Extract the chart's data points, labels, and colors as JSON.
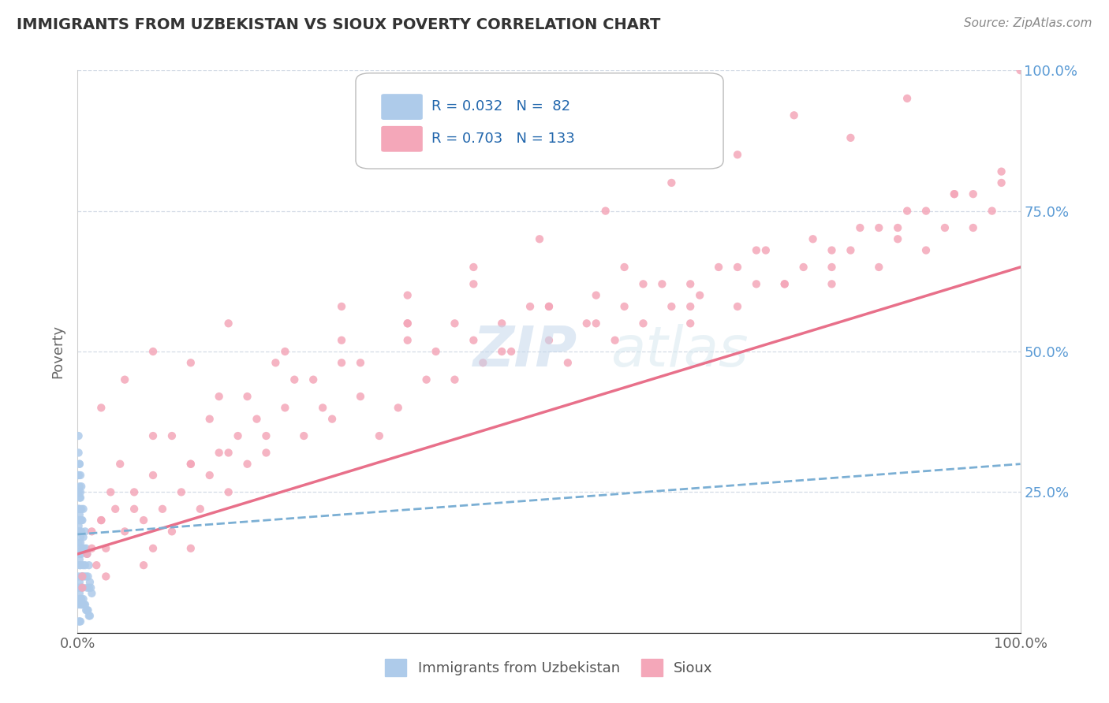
{
  "title": "IMMIGRANTS FROM UZBEKISTAN VS SIOUX POVERTY CORRELATION CHART",
  "source": "Source: ZipAtlas.com",
  "ylabel": "Poverty",
  "xlim": [
    0.0,
    1.0
  ],
  "ylim": [
    0.0,
    1.0
  ],
  "legend_entries": [
    {
      "label": "Immigrants from Uzbekistan",
      "color": "#aecbea",
      "R": 0.032,
      "N": 82
    },
    {
      "label": "Sioux",
      "color": "#f4a7b9",
      "R": 0.703,
      "N": 133
    }
  ],
  "uzbekistan_color": "#aecbea",
  "sioux_color": "#f4a7b9",
  "uzbekistan_line_color": "#7bafd4",
  "sioux_line_color": "#e8708a",
  "background_color": "#ffffff",
  "grid_color": "#d0d8e4",
  "watermark_color": "#dce8f0",
  "uzbekistan_scatter": {
    "x": [
      0.001,
      0.001,
      0.001,
      0.001,
      0.002,
      0.002,
      0.002,
      0.002,
      0.002,
      0.002,
      0.002,
      0.003,
      0.003,
      0.003,
      0.003,
      0.003,
      0.004,
      0.004,
      0.004,
      0.004,
      0.005,
      0.005,
      0.005,
      0.006,
      0.006,
      0.006,
      0.007,
      0.007,
      0.008,
      0.008,
      0.009,
      0.009,
      0.01,
      0.01,
      0.011,
      0.012,
      0.012,
      0.013,
      0.014,
      0.015,
      0.001,
      0.001,
      0.001,
      0.002,
      0.002,
      0.002,
      0.003,
      0.003,
      0.004,
      0.004,
      0.005,
      0.005,
      0.006,
      0.007,
      0.008,
      0.009,
      0.01,
      0.011,
      0.012,
      0.013,
      0.001,
      0.002,
      0.003,
      0.004,
      0.005,
      0.001,
      0.002,
      0.003,
      0.001,
      0.002,
      0.001,
      0.001,
      0.002,
      0.003,
      0.004,
      0.001,
      0.002,
      0.001,
      0.002,
      0.003,
      0.001,
      0.001
    ],
    "y": [
      0.22,
      0.28,
      0.25,
      0.32,
      0.15,
      0.18,
      0.2,
      0.24,
      0.26,
      0.22,
      0.3,
      0.12,
      0.16,
      0.2,
      0.24,
      0.28,
      0.14,
      0.18,
      0.22,
      0.26,
      0.1,
      0.15,
      0.2,
      0.12,
      0.17,
      0.22,
      0.1,
      0.15,
      0.12,
      0.18,
      0.1,
      0.15,
      0.08,
      0.14,
      0.1,
      0.08,
      0.12,
      0.09,
      0.08,
      0.07,
      0.05,
      0.08,
      0.1,
      0.06,
      0.09,
      0.12,
      0.05,
      0.08,
      0.06,
      0.1,
      0.05,
      0.08,
      0.06,
      0.05,
      0.05,
      0.04,
      0.04,
      0.04,
      0.03,
      0.03,
      0.35,
      0.3,
      0.25,
      0.2,
      0.15,
      0.02,
      0.02,
      0.02,
      0.16,
      0.13,
      0.22,
      0.18,
      0.07,
      0.06,
      0.05,
      0.19,
      0.14,
      0.25,
      0.21,
      0.17,
      0.28,
      0.2
    ]
  },
  "sioux_scatter": {
    "x": [
      0.005,
      0.01,
      0.015,
      0.02,
      0.025,
      0.03,
      0.04,
      0.05,
      0.06,
      0.07,
      0.08,
      0.09,
      0.1,
      0.11,
      0.12,
      0.13,
      0.14,
      0.15,
      0.16,
      0.17,
      0.18,
      0.19,
      0.2,
      0.22,
      0.24,
      0.25,
      0.27,
      0.28,
      0.3,
      0.32,
      0.34,
      0.35,
      0.37,
      0.38,
      0.4,
      0.42,
      0.43,
      0.45,
      0.46,
      0.48,
      0.5,
      0.52,
      0.54,
      0.55,
      0.57,
      0.58,
      0.6,
      0.62,
      0.63,
      0.65,
      0.66,
      0.68,
      0.7,
      0.72,
      0.73,
      0.75,
      0.77,
      0.78,
      0.8,
      0.82,
      0.83,
      0.85,
      0.87,
      0.88,
      0.9,
      0.92,
      0.93,
      0.95,
      0.97,
      0.98,
      0.005,
      0.015,
      0.025,
      0.035,
      0.045,
      0.06,
      0.08,
      0.1,
      0.12,
      0.14,
      0.16,
      0.18,
      0.2,
      0.23,
      0.26,
      0.3,
      0.35,
      0.4,
      0.45,
      0.5,
      0.55,
      0.6,
      0.65,
      0.7,
      0.75,
      0.8,
      0.85,
      0.9,
      0.95,
      1.0,
      0.025,
      0.05,
      0.08,
      0.12,
      0.16,
      0.22,
      0.28,
      0.35,
      0.42,
      0.5,
      0.58,
      0.65,
      0.72,
      0.8,
      0.87,
      0.93,
      0.98,
      0.88,
      0.82,
      0.76,
      0.7,
      0.63,
      0.56,
      0.49,
      0.42,
      0.35,
      0.28,
      0.21,
      0.15,
      0.08,
      0.03,
      0.07,
      0.12
    ],
    "y": [
      0.1,
      0.14,
      0.18,
      0.12,
      0.2,
      0.15,
      0.22,
      0.18,
      0.25,
      0.2,
      0.15,
      0.22,
      0.18,
      0.25,
      0.3,
      0.22,
      0.28,
      0.32,
      0.25,
      0.35,
      0.3,
      0.38,
      0.32,
      0.4,
      0.35,
      0.45,
      0.38,
      0.48,
      0.42,
      0.35,
      0.4,
      0.55,
      0.45,
      0.5,
      0.45,
      0.52,
      0.48,
      0.55,
      0.5,
      0.58,
      0.52,
      0.48,
      0.55,
      0.6,
      0.52,
      0.58,
      0.55,
      0.62,
      0.58,
      0.55,
      0.6,
      0.65,
      0.58,
      0.62,
      0.68,
      0.62,
      0.65,
      0.7,
      0.62,
      0.68,
      0.72,
      0.65,
      0.7,
      0.75,
      0.68,
      0.72,
      0.78,
      0.72,
      0.75,
      0.8,
      0.08,
      0.15,
      0.2,
      0.25,
      0.3,
      0.22,
      0.28,
      0.35,
      0.3,
      0.38,
      0.32,
      0.42,
      0.35,
      0.45,
      0.4,
      0.48,
      0.52,
      0.55,
      0.5,
      0.58,
      0.55,
      0.62,
      0.58,
      0.65,
      0.62,
      0.68,
      0.72,
      0.75,
      0.78,
      1.0,
      0.4,
      0.45,
      0.5,
      0.48,
      0.55,
      0.5,
      0.58,
      0.55,
      0.62,
      0.58,
      0.65,
      0.62,
      0.68,
      0.65,
      0.72,
      0.78,
      0.82,
      0.95,
      0.88,
      0.92,
      0.85,
      0.8,
      0.75,
      0.7,
      0.65,
      0.6,
      0.52,
      0.48,
      0.42,
      0.35,
      0.1,
      0.12,
      0.15
    ]
  },
  "sioux_line": {
    "x0": 0.0,
    "y0": 0.14,
    "x1": 1.0,
    "y1": 0.65
  },
  "uzbekistan_line": {
    "x0": 0.0,
    "y0": 0.175,
    "x1": 1.0,
    "y1": 0.3
  }
}
